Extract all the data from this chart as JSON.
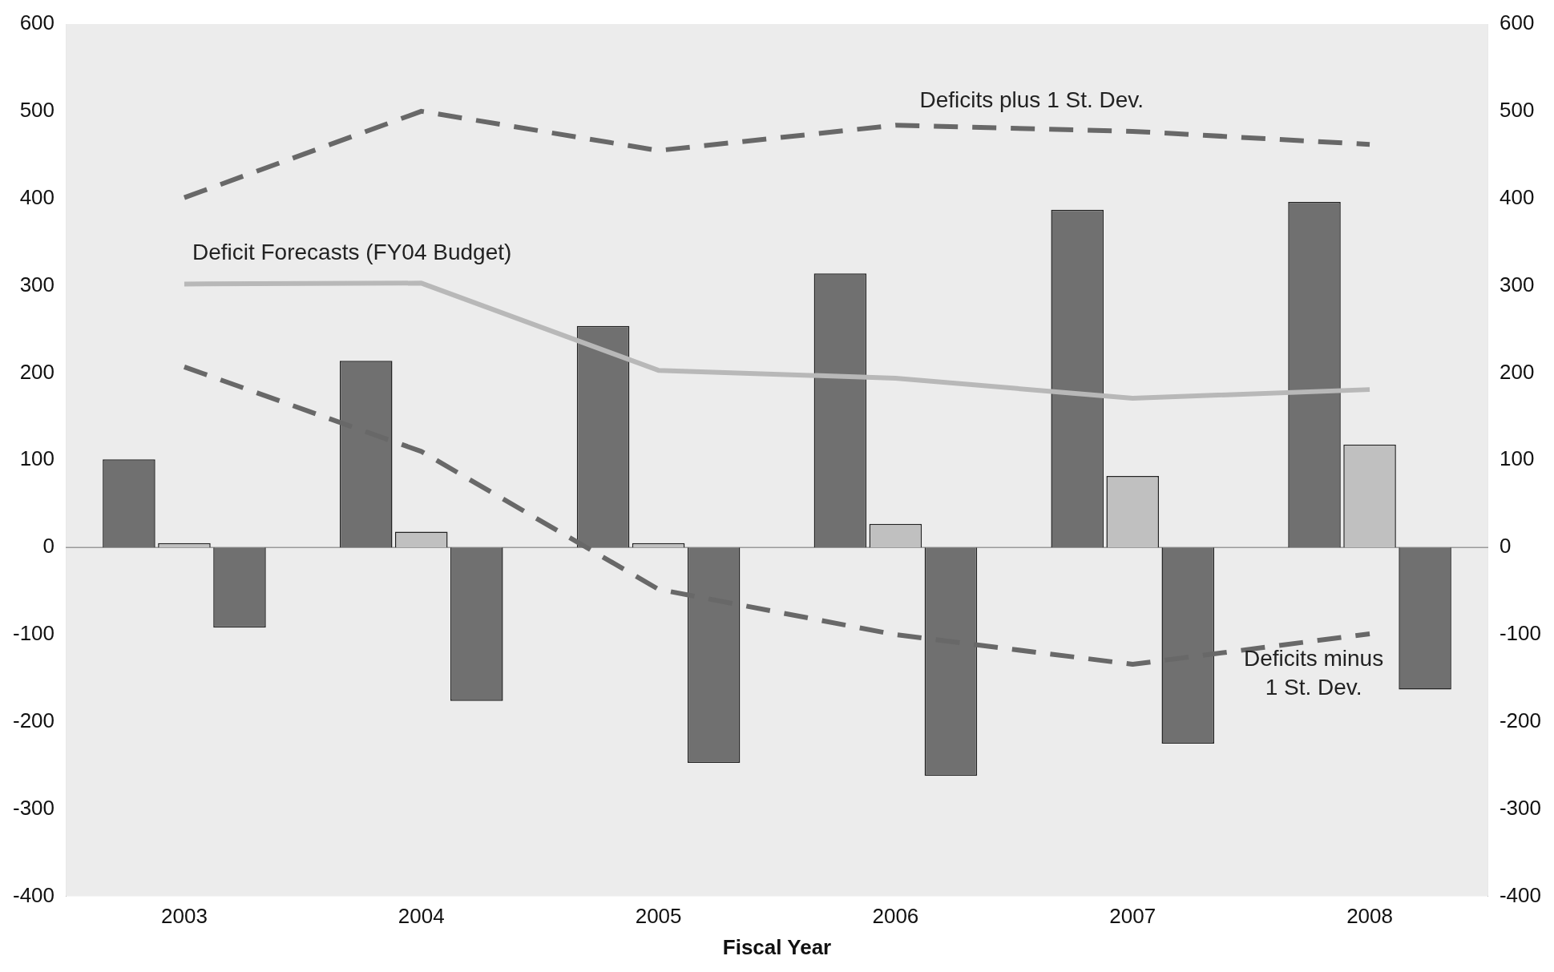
{
  "chart_data": {
    "type": "bar",
    "xlabel": "Fiscal Year",
    "categories": [
      "2003",
      "2004",
      "2005",
      "2006",
      "2007",
      "2008"
    ],
    "series": [
      {
        "color": "#707070",
        "values": [
          101,
          214,
          254,
          314,
          387,
          396
        ]
      },
      {
        "color": "#c0c0c0",
        "values": [
          5,
          18,
          5,
          27,
          82,
          118
        ]
      },
      {
        "color": "#707070",
        "values": [
          -92,
          -176,
          -247,
          -262,
          -225,
          -163
        ]
      },
      {
        "type": "line",
        "name": "Deficits plus 1 St. Dev.",
        "color": "#686868",
        "line_style": "dashed",
        "values": [
          401,
          500,
          455,
          484,
          477,
          462
        ]
      },
      {
        "type": "line",
        "name": "Deficit Forecasts (FY04 Budget)",
        "color": "#b8b8b8",
        "line_style": "solid",
        "values": [
          302,
          303,
          203,
          194,
          171,
          181
        ]
      },
      {
        "type": "line",
        "name": "Deficits minus 1 St. Dev.",
        "color": "#686868",
        "line_style": "dashed",
        "values": [
          207,
          110,
          -48,
          -100,
          -134,
          -99
        ]
      }
    ],
    "ylim": [
      -400,
      600
    ],
    "yticks": [
      -400,
      -300,
      -200,
      -100,
      0,
      100,
      200,
      300,
      400,
      500,
      600
    ],
    "y2lim": [
      -400,
      600
    ],
    "y2ticks": [
      -400,
      -300,
      -200,
      -100,
      0,
      100,
      200,
      300,
      400,
      500,
      600
    ],
    "ref_lines": [
      {
        "axis": "y",
        "value": 0,
        "color": "#9a9a9a"
      }
    ],
    "grid": false,
    "legend": false,
    "marker": "none"
  }
}
